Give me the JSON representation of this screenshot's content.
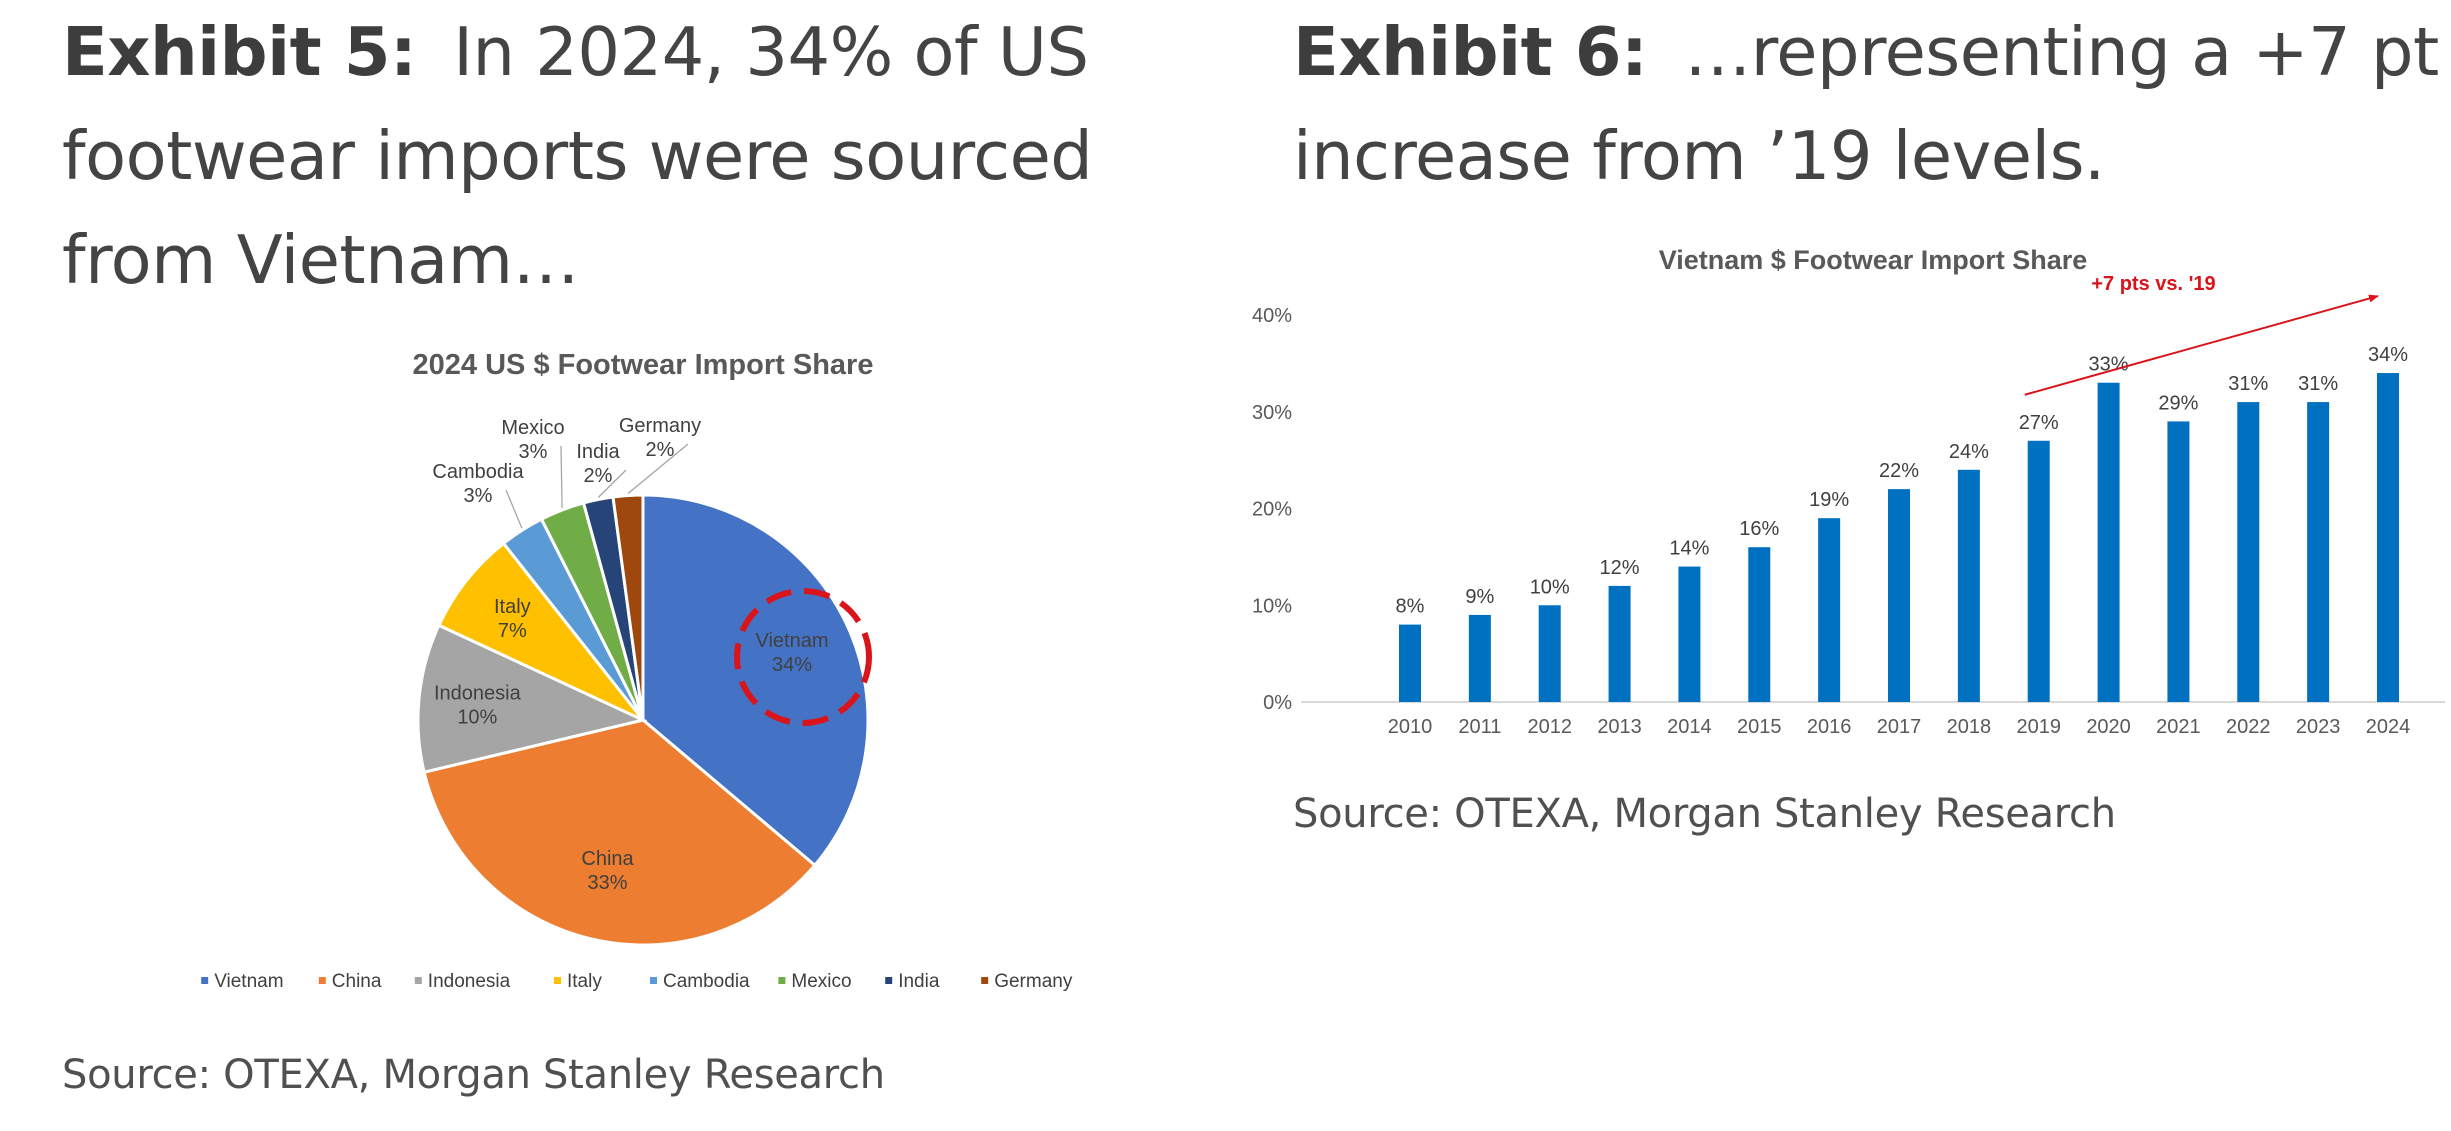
{
  "left": {
    "exhibit_label": "Exhibit 5:",
    "headline": "In 2024, 34% of US footwear imports were sourced from Vietnam…",
    "source": "Source: OTEXA, Morgan Stanley Research"
  },
  "right": {
    "exhibit_label": "Exhibit 6:",
    "headline": "…representing a +7 pt increase from ’19 levels.",
    "source": "Source: OTEXA, Morgan Stanley Research"
  },
  "colors": {
    "bar": "#0070c0",
    "annotation": "#d9141b",
    "Vietnam": "#4472c4",
    "China": "#ed7d31",
    "Indonesia": "#a5a5a5",
    "Italy": "#ffc000",
    "Cambodia": "#5b9bd5",
    "Mexico": "#70ad47",
    "India": "#264478",
    "Germany": "#9e480e"
  },
  "chart_data": [
    {
      "type": "pie",
      "title": "2024 US $ Footwear Import Share",
      "categories": [
        "Vietnam",
        "China",
        "Indonesia",
        "Italy",
        "Cambodia",
        "Mexico",
        "India",
        "Germany"
      ],
      "values": [
        34,
        33,
        10,
        7,
        3,
        3,
        2,
        2
      ],
      "data_labels": [
        "34%",
        "33%",
        "10%",
        "7%",
        "3%",
        "3%",
        "2%",
        "2%"
      ],
      "legend": "bottom",
      "highlight": "Vietnam"
    },
    {
      "type": "bar",
      "title": "Vietnam $ Footwear Import Share",
      "categories": [
        "2010",
        "2011",
        "2012",
        "2013",
        "2014",
        "2015",
        "2016",
        "2017",
        "2018",
        "2019",
        "2020",
        "2021",
        "2022",
        "2023",
        "2024"
      ],
      "values": [
        8,
        9,
        10,
        12,
        14,
        16,
        19,
        22,
        24,
        27,
        33,
        29,
        31,
        31,
        34
      ],
      "data_labels": [
        "8%",
        "9%",
        "10%",
        "12%",
        "14%",
        "16%",
        "19%",
        "22%",
        "24%",
        "27%",
        "33%",
        "29%",
        "31%",
        "31%",
        "34%"
      ],
      "ylim": [
        0,
        40
      ],
      "yticks": [
        "0%",
        "10%",
        "20%",
        "30%",
        "40%"
      ],
      "xlabel": "",
      "ylabel": "",
      "annotation": {
        "text": "+7 pts vs. '19",
        "from": "2019",
        "to": "2024"
      }
    }
  ]
}
